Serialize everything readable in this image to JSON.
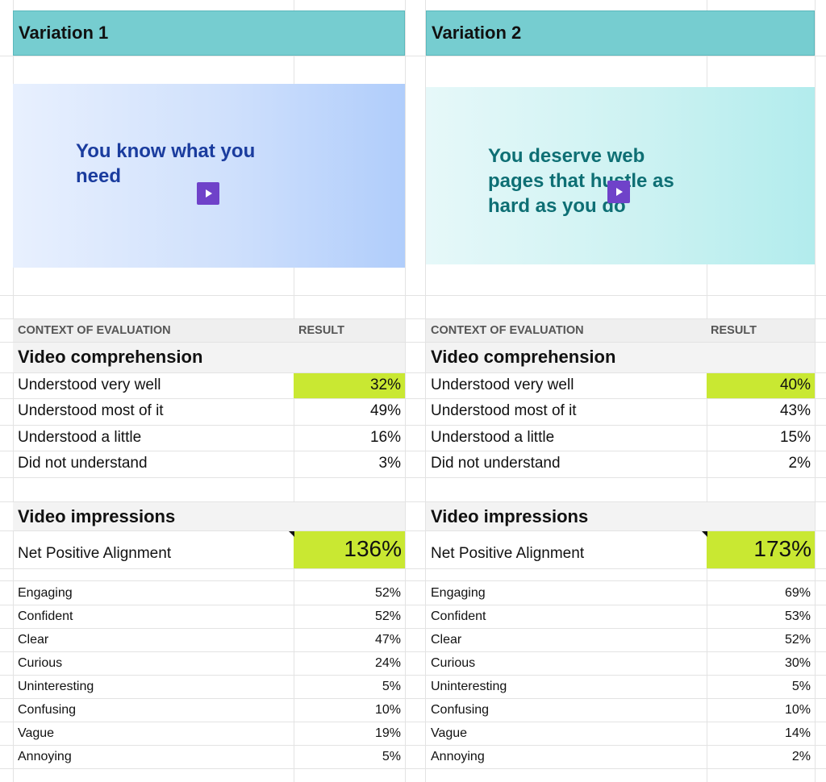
{
  "variations": [
    {
      "title": "Variation 1",
      "thumbnail_text": "You know what you need",
      "headers": {
        "context": "CONTEXT OF EVALUATION",
        "result": "RESULT"
      },
      "comprehension": {
        "title": "Video comprehension",
        "rows": [
          {
            "label": "Understood very well",
            "value": "32%"
          },
          {
            "label": "Understood most of it",
            "value": "49%"
          },
          {
            "label": "Understood a little",
            "value": "16%"
          },
          {
            "label": "Did not understand",
            "value": "3%"
          }
        ]
      },
      "impressions": {
        "title": "Video impressions",
        "net_label": "Net Positive Alignment",
        "net_value": "136%",
        "rows": [
          {
            "label": "Engaging",
            "value": "52%"
          },
          {
            "label": "Confident",
            "value": "52%"
          },
          {
            "label": "Clear",
            "value": "47%"
          },
          {
            "label": "Curious",
            "value": "24%"
          },
          {
            "label": "Uninteresting",
            "value": "5%"
          },
          {
            "label": "Confusing",
            "value": "10%"
          },
          {
            "label": "Vague",
            "value": "19%"
          },
          {
            "label": "Annoying",
            "value": "5%"
          }
        ]
      }
    },
    {
      "title": "Variation 2",
      "thumbnail_text": "You deserve web pages that hustle as hard as you do",
      "headers": {
        "context": "CONTEXT OF EVALUATION",
        "result": "RESULT"
      },
      "comprehension": {
        "title": "Video comprehension",
        "rows": [
          {
            "label": "Understood very well",
            "value": "40%"
          },
          {
            "label": "Understood most of it",
            "value": "43%"
          },
          {
            "label": "Understood a little",
            "value": "15%"
          },
          {
            "label": "Did not understand",
            "value": "2%"
          }
        ]
      },
      "impressions": {
        "title": "Video impressions",
        "net_label": "Net Positive Alignment",
        "net_value": "173%",
        "rows": [
          {
            "label": "Engaging",
            "value": "69%"
          },
          {
            "label": "Confident",
            "value": "53%"
          },
          {
            "label": "Clear",
            "value": "52%"
          },
          {
            "label": "Curious",
            "value": "30%"
          },
          {
            "label": "Uninteresting",
            "value": "5%"
          },
          {
            "label": "Confusing",
            "value": "10%"
          },
          {
            "label": "Vague",
            "value": "14%"
          },
          {
            "label": "Annoying",
            "value": "2%"
          }
        ]
      }
    }
  ],
  "colors": {
    "header_teal": "#76cdd0",
    "highlight_lime": "#c9e832",
    "play_purple": "#6f42c9"
  }
}
